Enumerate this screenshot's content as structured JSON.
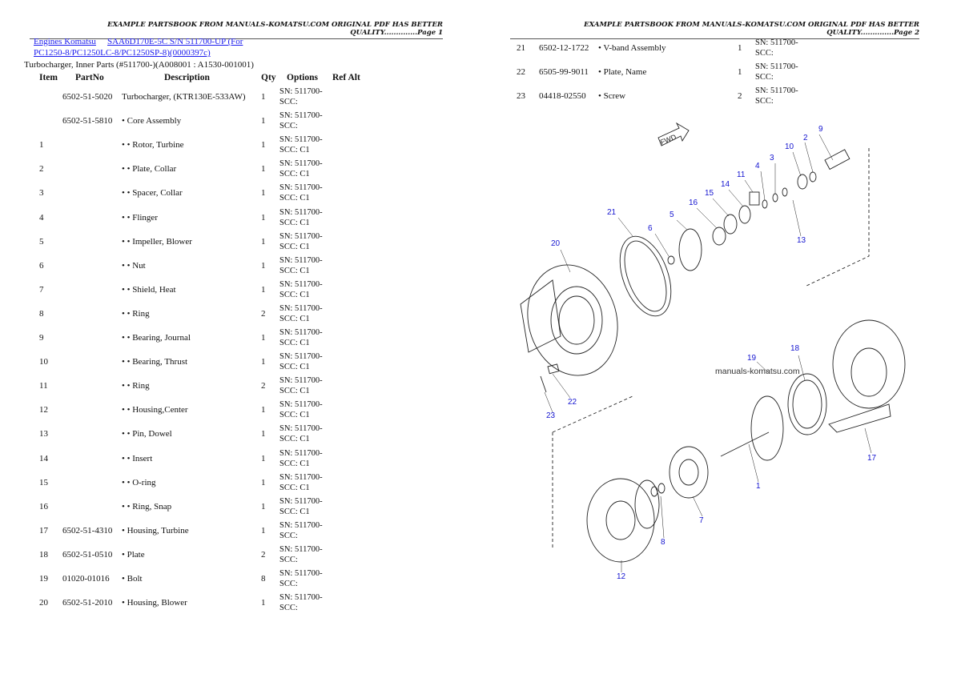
{
  "header_left": "EXAMPLE PARTSBOOK FROM MANUALS-KOMATSU.COM ORIGINAL PDF HAS BETTER QUALITY..............Page 1",
  "header_right": "EXAMPLE PARTSBOOK FROM MANUALS-KOMATSU.COM ORIGINAL PDF HAS BETTER QUALITY..............Page 2",
  "breadcrumb": {
    "link1": "Engines Komatsu",
    "link2a": "SAA6D170E-5C S/N 511700-UP (For",
    "link2b": "PC1250-8/PC1250LC-8/PC1250SP-8)(0000397c)"
  },
  "subtitle": "Turbocharger, Inner Parts (#511700-)(A008001 : A1530-001001)",
  "columns": [
    "Item",
    "PartNo",
    "Description",
    "Qty",
    "Options",
    "Ref Alt"
  ],
  "rows": [
    {
      "item": "",
      "part": "6502-51-5020",
      "desc": "Turbocharger, (KTR130E-533AW)",
      "qty": "1",
      "opt1": "SN: 511700-",
      "opt2": "SCC:"
    },
    {
      "item": "",
      "part": "6502-51-5810",
      "desc": "• Core Assembly",
      "qty": "1",
      "opt1": "SN: 511700-",
      "opt2": "SCC:"
    },
    {
      "item": "1",
      "part": "",
      "desc": "• • Rotor, Turbine",
      "qty": "1",
      "opt1": "SN: 511700-",
      "opt2": "SCC: C1"
    },
    {
      "item": "2",
      "part": "",
      "desc": "• • Plate, Collar",
      "qty": "1",
      "opt1": "SN: 511700-",
      "opt2": "SCC: C1"
    },
    {
      "item": "3",
      "part": "",
      "desc": "• • Spacer, Collar",
      "qty": "1",
      "opt1": "SN: 511700-",
      "opt2": "SCC: C1"
    },
    {
      "item": "4",
      "part": "",
      "desc": "• • Flinger",
      "qty": "1",
      "opt1": "SN: 511700-",
      "opt2": "SCC: C1"
    },
    {
      "item": "5",
      "part": "",
      "desc": "• • Impeller, Blower",
      "qty": "1",
      "opt1": "SN: 511700-",
      "opt2": "SCC: C1"
    },
    {
      "item": "6",
      "part": "",
      "desc": "• • Nut",
      "qty": "1",
      "opt1": "SN: 511700-",
      "opt2": "SCC: C1"
    },
    {
      "item": "7",
      "part": "",
      "desc": "• • Shield, Heat",
      "qty": "1",
      "opt1": "SN: 511700-",
      "opt2": "SCC: C1"
    },
    {
      "item": "8",
      "part": "",
      "desc": "• • Ring",
      "qty": "2",
      "opt1": "SN: 511700-",
      "opt2": "SCC: C1"
    },
    {
      "item": "9",
      "part": "",
      "desc": "• • Bearing, Journal",
      "qty": "1",
      "opt1": "SN: 511700-",
      "opt2": "SCC: C1"
    },
    {
      "item": "10",
      "part": "",
      "desc": "• • Bearing, Thrust",
      "qty": "1",
      "opt1": "SN: 511700-",
      "opt2": "SCC: C1"
    },
    {
      "item": "11",
      "part": "",
      "desc": "• • Ring",
      "qty": "2",
      "opt1": "SN: 511700-",
      "opt2": "SCC: C1"
    },
    {
      "item": "12",
      "part": "",
      "desc": "• • Housing,Center",
      "qty": "1",
      "opt1": "SN: 511700-",
      "opt2": "SCC: C1"
    },
    {
      "item": "13",
      "part": "",
      "desc": "• • Pin, Dowel",
      "qty": "1",
      "opt1": "SN: 511700-",
      "opt2": "SCC: C1"
    },
    {
      "item": "14",
      "part": "",
      "desc": "• • Insert",
      "qty": "1",
      "opt1": "SN: 511700-",
      "opt2": "SCC: C1"
    },
    {
      "item": "15",
      "part": "",
      "desc": "• • O-ring",
      "qty": "1",
      "opt1": "SN: 511700-",
      "opt2": "SCC: C1"
    },
    {
      "item": "16",
      "part": "",
      "desc": "• • Ring, Snap",
      "qty": "1",
      "opt1": "SN: 511700-",
      "opt2": "SCC: C1"
    },
    {
      "item": "17",
      "part": "6502-51-4310",
      "desc": "• Housing, Turbine",
      "qty": "1",
      "opt1": "SN: 511700-",
      "opt2": "SCC:"
    },
    {
      "item": "18",
      "part": "6502-51-0510",
      "desc": "• Plate",
      "qty": "2",
      "opt1": "SN: 511700-",
      "opt2": "SCC:"
    },
    {
      "item": "19",
      "part": "01020-01016",
      "desc": "• Bolt",
      "qty": "8",
      "opt1": "SN: 511700-",
      "opt2": "SCC:"
    },
    {
      "item": "20",
      "part": "6502-51-2010",
      "desc": "• Housing, Blower",
      "qty": "1",
      "opt1": "SN: 511700-",
      "opt2": "SCC:"
    }
  ],
  "rows_page2": [
    {
      "item": "21",
      "part": "6502-12-1722",
      "desc": "• V-band Assembly",
      "qty": "1",
      "opt1": "SN: 511700-",
      "opt2": "SCC:"
    },
    {
      "item": "22",
      "part": "6505-99-9011",
      "desc": "• Plate, Name",
      "qty": "1",
      "opt1": "SN: 511700-",
      "opt2": "SCC:"
    },
    {
      "item": "23",
      "part": "04418-02550",
      "desc": "• Screw",
      "qty": "2",
      "opt1": "SN: 511700-",
      "opt2": "SCC:"
    }
  ],
  "diagram": {
    "fwd": "FWD",
    "watermark": "manuals-komatsu.com",
    "callouts": [
      "9",
      "2",
      "10",
      "3",
      "4",
      "11",
      "14",
      "15",
      "16",
      "21",
      "5",
      "6",
      "13",
      "20",
      "19",
      "18",
      "22",
      "23",
      "17",
      "1",
      "7",
      "8",
      "12"
    ]
  }
}
